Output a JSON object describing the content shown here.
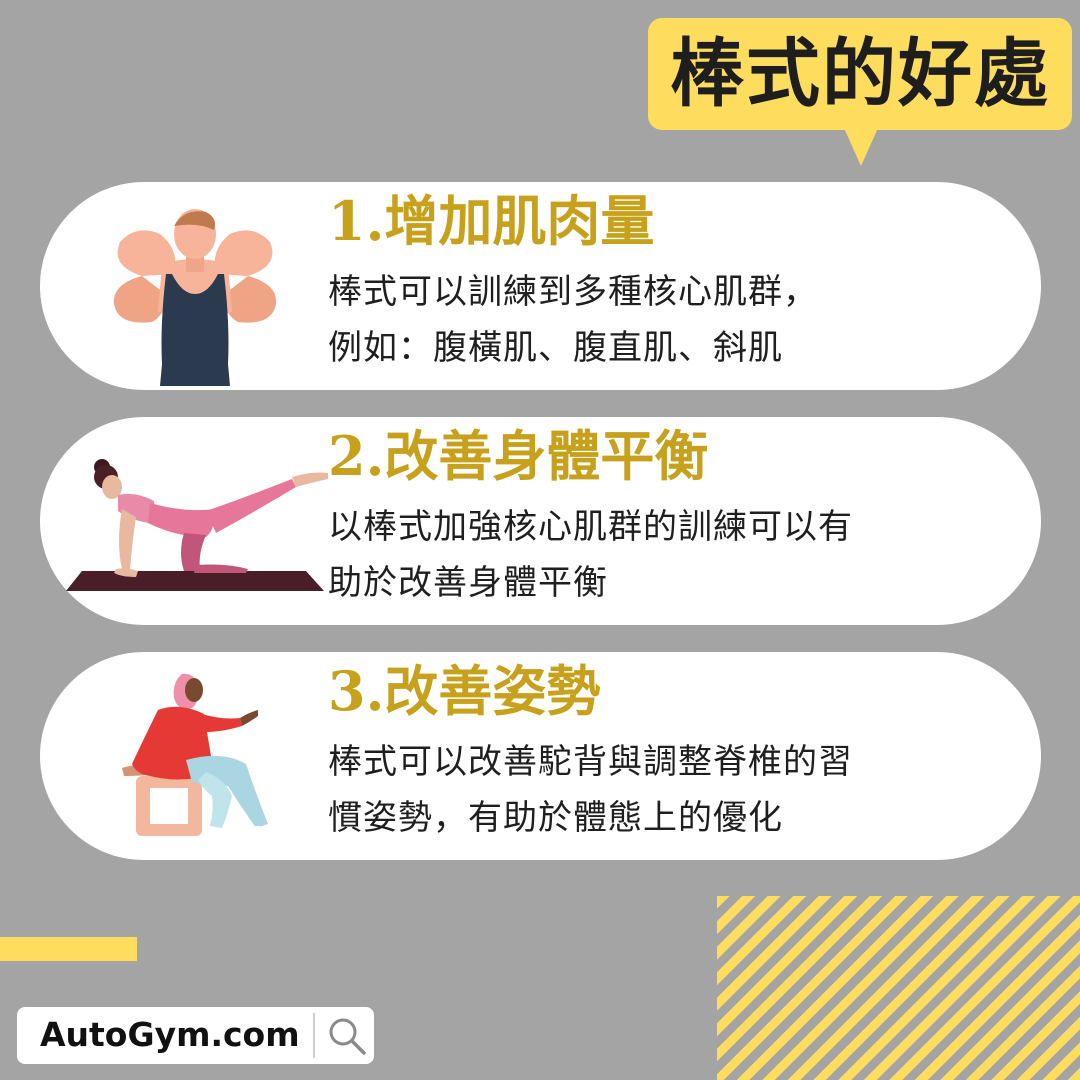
{
  "title": "棒式的好處",
  "cards": [
    {
      "heading": "1.增加肌肉量",
      "lines": [
        "棒式可以訓練到多種核心肌群，",
        "例如：腹橫肌、腹直肌、斜肌"
      ],
      "illustration": "muscular-man-flexing"
    },
    {
      "heading": "2.改善身體平衡",
      "lines": [
        "以棒式加強核心肌群的訓練可以有",
        "助於改善身體平衡"
      ],
      "illustration": "woman-balance-exercise-on-mat"
    },
    {
      "heading": "3.改善姿勢",
      "lines": [
        "棒式可以改善駝背與調整脊椎的習",
        "慣姿勢，有助於體態上的優化"
      ],
      "illustration": "woman-sitting-on-stool"
    }
  ],
  "logo": {
    "text": "AutoGym.com",
    "icon": "search-icon"
  },
  "colors": {
    "background": "#a4a4a4",
    "accent_yellow": "#fedd5e",
    "heading_gold": "#c7a11b",
    "card": "#ffffff",
    "text": "#1f1f1f"
  }
}
